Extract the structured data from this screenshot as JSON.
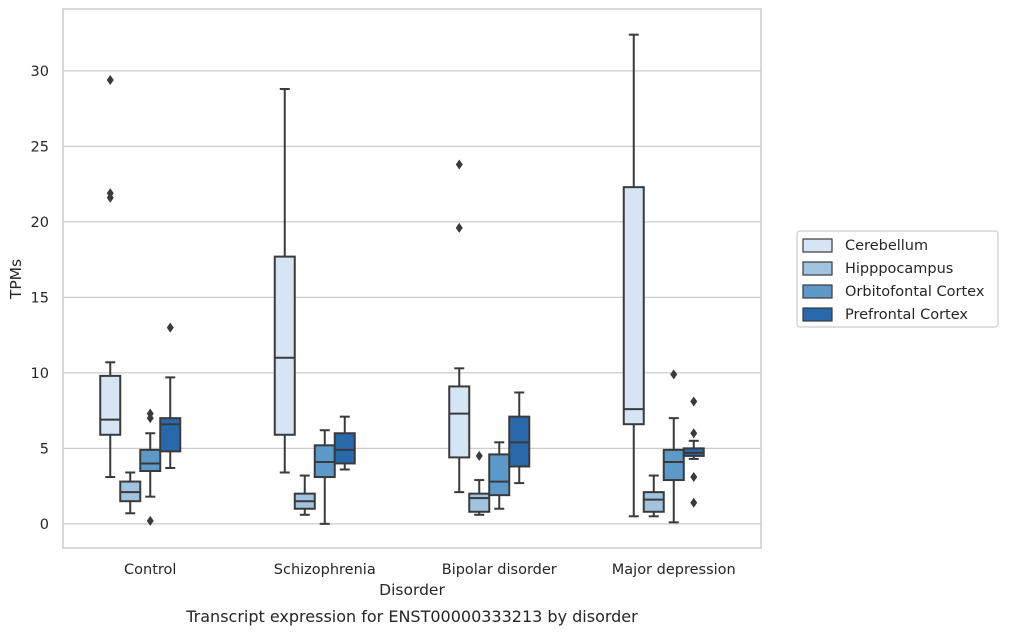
{
  "chart_data": {
    "type": "box",
    "title": "",
    "caption": "Transcript expression for ENST00000333213 by disorder",
    "xlabel": "Disorder",
    "ylabel": "TPMs",
    "ylim": [
      -1.6,
      34.1
    ],
    "yticks": [
      0,
      5,
      10,
      15,
      20,
      25,
      30
    ],
    "grid": "horizontal",
    "legend_position": "right",
    "categories": [
      "Control",
      "Schizophrenia",
      "Bipolar disorder",
      "Major depression"
    ],
    "series": [
      {
        "name": "Cerebellum",
        "color": "#d6e5f4",
        "boxes": [
          {
            "whisker_low": 3.1,
            "q1": 5.9,
            "median": 6.9,
            "q3": 9.8,
            "whisker_high": 10.7,
            "outliers": [
              21.6,
              21.9,
              29.4
            ]
          },
          {
            "whisker_low": 3.4,
            "q1": 5.9,
            "median": 11.0,
            "q3": 17.7,
            "whisker_high": 28.8,
            "outliers": []
          },
          {
            "whisker_low": 2.1,
            "q1": 4.4,
            "median": 7.3,
            "q3": 9.1,
            "whisker_high": 10.3,
            "outliers": [
              19.6,
              23.8
            ]
          },
          {
            "whisker_low": 0.5,
            "q1": 6.6,
            "median": 7.6,
            "q3": 22.3,
            "whisker_high": 32.4,
            "outliers": []
          }
        ]
      },
      {
        "name": "Hipppocampus",
        "color": "#a0c4df",
        "boxes": [
          {
            "whisker_low": 0.7,
            "q1": 1.5,
            "median": 2.1,
            "q3": 2.8,
            "whisker_high": 3.4,
            "outliers": []
          },
          {
            "whisker_low": 0.6,
            "q1": 1.0,
            "median": 1.5,
            "q3": 2.0,
            "whisker_high": 3.2,
            "outliers": []
          },
          {
            "whisker_low": 0.6,
            "q1": 0.8,
            "median": 1.7,
            "q3": 2.0,
            "whisker_high": 2.9,
            "outliers": [
              4.5
            ]
          },
          {
            "whisker_low": 0.5,
            "q1": 0.8,
            "median": 1.6,
            "q3": 2.1,
            "whisker_high": 3.2,
            "outliers": []
          }
        ]
      },
      {
        "name": "Orbitofontal Cortex",
        "color": "#5d9ac9",
        "boxes": [
          {
            "whisker_low": 1.8,
            "q1": 3.5,
            "median": 4.0,
            "q3": 4.9,
            "whisker_high": 6.0,
            "outliers": [
              0.2,
              7.0,
              7.3
            ]
          },
          {
            "whisker_low": 0.0,
            "q1": 3.1,
            "median": 4.1,
            "q3": 5.2,
            "whisker_high": 6.2,
            "outliers": []
          },
          {
            "whisker_low": 1.0,
            "q1": 1.9,
            "median": 2.8,
            "q3": 4.6,
            "whisker_high": 5.4,
            "outliers": []
          },
          {
            "whisker_low": 0.1,
            "q1": 2.9,
            "median": 4.1,
            "q3": 4.9,
            "whisker_high": 7.0,
            "outliers": [
              9.9
            ]
          }
        ]
      },
      {
        "name": "Prefrontal Cortex",
        "color": "#2869ab",
        "boxes": [
          {
            "whisker_low": 3.7,
            "q1": 4.8,
            "median": 6.6,
            "q3": 7.0,
            "whisker_high": 9.7,
            "outliers": [
              13.0
            ]
          },
          {
            "whisker_low": 3.6,
            "q1": 4.0,
            "median": 4.9,
            "q3": 6.0,
            "whisker_high": 7.1,
            "outliers": []
          },
          {
            "whisker_low": 2.7,
            "q1": 3.8,
            "median": 5.4,
            "q3": 7.1,
            "whisker_high": 8.7,
            "outliers": []
          },
          {
            "whisker_low": 4.3,
            "q1": 4.5,
            "median": 4.7,
            "q3": 5.0,
            "whisker_high": 5.5,
            "outliers": [
              1.4,
              3.1,
              6.0,
              8.1
            ]
          }
        ]
      }
    ]
  }
}
